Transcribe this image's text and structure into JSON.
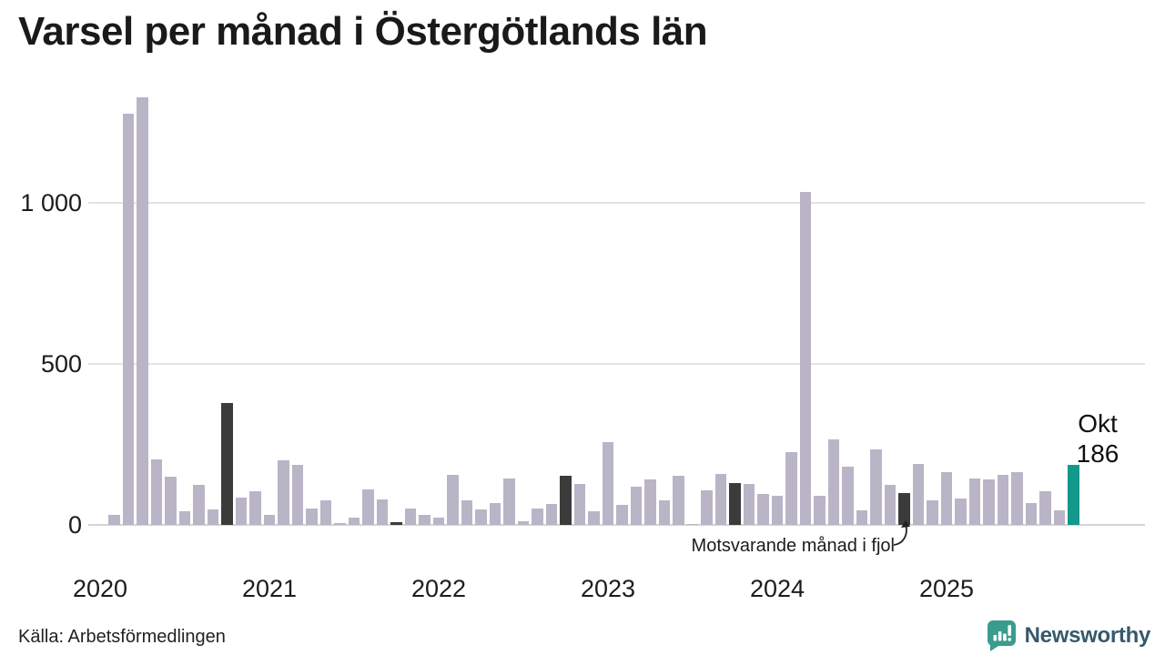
{
  "title": "Varsel per månad i Östergötlands län",
  "source": "Källa: Arbetsförmedlingen",
  "annotation": {
    "label": "Motsvarande månad i fjol"
  },
  "current": {
    "month": "Okt",
    "value": "186"
  },
  "branding": {
    "name": "Newsworthy",
    "icon": "newsworthy-speech-bubble-chart-icon"
  },
  "colors": {
    "bar": "#b9b5c6",
    "bar_last_year": "#3b3b3b",
    "bar_current": "#13988b",
    "grid": "#e3e3e3",
    "axis_line": "#d5d5d5",
    "text": "#1c1c1c",
    "logo": "#3a9c8d",
    "logo_text": "#36596b"
  },
  "chart_data": {
    "type": "bar",
    "title": "Varsel per månad i Östergötlands län",
    "xlabel": "",
    "ylabel": "",
    "ylim": [
      0,
      1350
    ],
    "grid": "horizontal",
    "legend_note": "Dark bars = Motsvarande månad i fjol (same month previous years); teal bar = current month Okt 2025 = 186",
    "yticks": [
      {
        "value": 0,
        "label": "0"
      },
      {
        "value": 500,
        "label": "500"
      },
      {
        "value": 1000,
        "label": "1 000"
      }
    ],
    "year_ticks": [
      "2020",
      "2021",
      "2022",
      "2023",
      "2024",
      "2025"
    ],
    "points": [
      {
        "month": "2020-01",
        "value": 0,
        "role": "normal"
      },
      {
        "month": "2020-02",
        "value": 30,
        "role": "normal"
      },
      {
        "month": "2020-03",
        "value": 1277,
        "role": "normal"
      },
      {
        "month": "2020-04",
        "value": 1328,
        "role": "normal"
      },
      {
        "month": "2020-05",
        "value": 204,
        "role": "normal"
      },
      {
        "month": "2020-06",
        "value": 151,
        "role": "normal"
      },
      {
        "month": "2020-07",
        "value": 42,
        "role": "normal"
      },
      {
        "month": "2020-08",
        "value": 123,
        "role": "normal"
      },
      {
        "month": "2020-09",
        "value": 47,
        "role": "normal"
      },
      {
        "month": "2020-10",
        "value": 379,
        "role": "fjol"
      },
      {
        "month": "2020-11",
        "value": 85,
        "role": "normal"
      },
      {
        "month": "2020-12",
        "value": 104,
        "role": "normal"
      },
      {
        "month": "2021-01",
        "value": 31,
        "role": "normal"
      },
      {
        "month": "2021-02",
        "value": 200,
        "role": "normal"
      },
      {
        "month": "2021-03",
        "value": 187,
        "role": "normal"
      },
      {
        "month": "2021-04",
        "value": 50,
        "role": "normal"
      },
      {
        "month": "2021-05",
        "value": 76,
        "role": "normal"
      },
      {
        "month": "2021-06",
        "value": 5,
        "role": "normal"
      },
      {
        "month": "2021-07",
        "value": 23,
        "role": "normal"
      },
      {
        "month": "2021-08",
        "value": 109,
        "role": "normal"
      },
      {
        "month": "2021-09",
        "value": 79,
        "role": "normal"
      },
      {
        "month": "2021-10",
        "value": 8,
        "role": "fjol"
      },
      {
        "month": "2021-11",
        "value": 50,
        "role": "normal"
      },
      {
        "month": "2021-12",
        "value": 32,
        "role": "normal"
      },
      {
        "month": "2022-01",
        "value": 23,
        "role": "normal"
      },
      {
        "month": "2022-02",
        "value": 156,
        "role": "normal"
      },
      {
        "month": "2022-03",
        "value": 76,
        "role": "normal"
      },
      {
        "month": "2022-04",
        "value": 48,
        "role": "normal"
      },
      {
        "month": "2022-05",
        "value": 69,
        "role": "normal"
      },
      {
        "month": "2022-06",
        "value": 145,
        "role": "normal"
      },
      {
        "month": "2022-07",
        "value": 10,
        "role": "normal"
      },
      {
        "month": "2022-08",
        "value": 50,
        "role": "normal"
      },
      {
        "month": "2022-09",
        "value": 65,
        "role": "normal"
      },
      {
        "month": "2022-10",
        "value": 153,
        "role": "fjol"
      },
      {
        "month": "2022-11",
        "value": 128,
        "role": "normal"
      },
      {
        "month": "2022-12",
        "value": 41,
        "role": "normal"
      },
      {
        "month": "2023-01",
        "value": 257,
        "role": "normal"
      },
      {
        "month": "2023-02",
        "value": 62,
        "role": "normal"
      },
      {
        "month": "2023-03",
        "value": 119,
        "role": "normal"
      },
      {
        "month": "2023-04",
        "value": 142,
        "role": "normal"
      },
      {
        "month": "2023-05",
        "value": 76,
        "role": "normal"
      },
      {
        "month": "2023-06",
        "value": 153,
        "role": "normal"
      },
      {
        "month": "2023-07",
        "value": 3,
        "role": "normal"
      },
      {
        "month": "2023-08",
        "value": 106,
        "role": "normal"
      },
      {
        "month": "2023-09",
        "value": 159,
        "role": "normal"
      },
      {
        "month": "2023-10",
        "value": 130,
        "role": "fjol"
      },
      {
        "month": "2023-11",
        "value": 128,
        "role": "normal"
      },
      {
        "month": "2023-12",
        "value": 97,
        "role": "normal"
      },
      {
        "month": "2024-01",
        "value": 90,
        "role": "normal"
      },
      {
        "month": "2024-02",
        "value": 227,
        "role": "normal"
      },
      {
        "month": "2024-03",
        "value": 1035,
        "role": "normal"
      },
      {
        "month": "2024-04",
        "value": 90,
        "role": "normal"
      },
      {
        "month": "2024-05",
        "value": 265,
        "role": "normal"
      },
      {
        "month": "2024-06",
        "value": 180,
        "role": "normal"
      },
      {
        "month": "2024-07",
        "value": 46,
        "role": "normal"
      },
      {
        "month": "2024-08",
        "value": 234,
        "role": "normal"
      },
      {
        "month": "2024-09",
        "value": 125,
        "role": "normal"
      },
      {
        "month": "2024-10",
        "value": 100,
        "role": "fjol"
      },
      {
        "month": "2024-11",
        "value": 189,
        "role": "normal"
      },
      {
        "month": "2024-12",
        "value": 76,
        "role": "normal"
      },
      {
        "month": "2025-01",
        "value": 163,
        "role": "normal"
      },
      {
        "month": "2025-02",
        "value": 82,
        "role": "normal"
      },
      {
        "month": "2025-03",
        "value": 145,
        "role": "normal"
      },
      {
        "month": "2025-04",
        "value": 140,
        "role": "normal"
      },
      {
        "month": "2025-05",
        "value": 154,
        "role": "normal"
      },
      {
        "month": "2025-06",
        "value": 164,
        "role": "normal"
      },
      {
        "month": "2025-07",
        "value": 69,
        "role": "normal"
      },
      {
        "month": "2025-08",
        "value": 105,
        "role": "normal"
      },
      {
        "month": "2025-09",
        "value": 45,
        "role": "normal"
      },
      {
        "month": "2025-10",
        "value": 186,
        "role": "current"
      }
    ]
  }
}
